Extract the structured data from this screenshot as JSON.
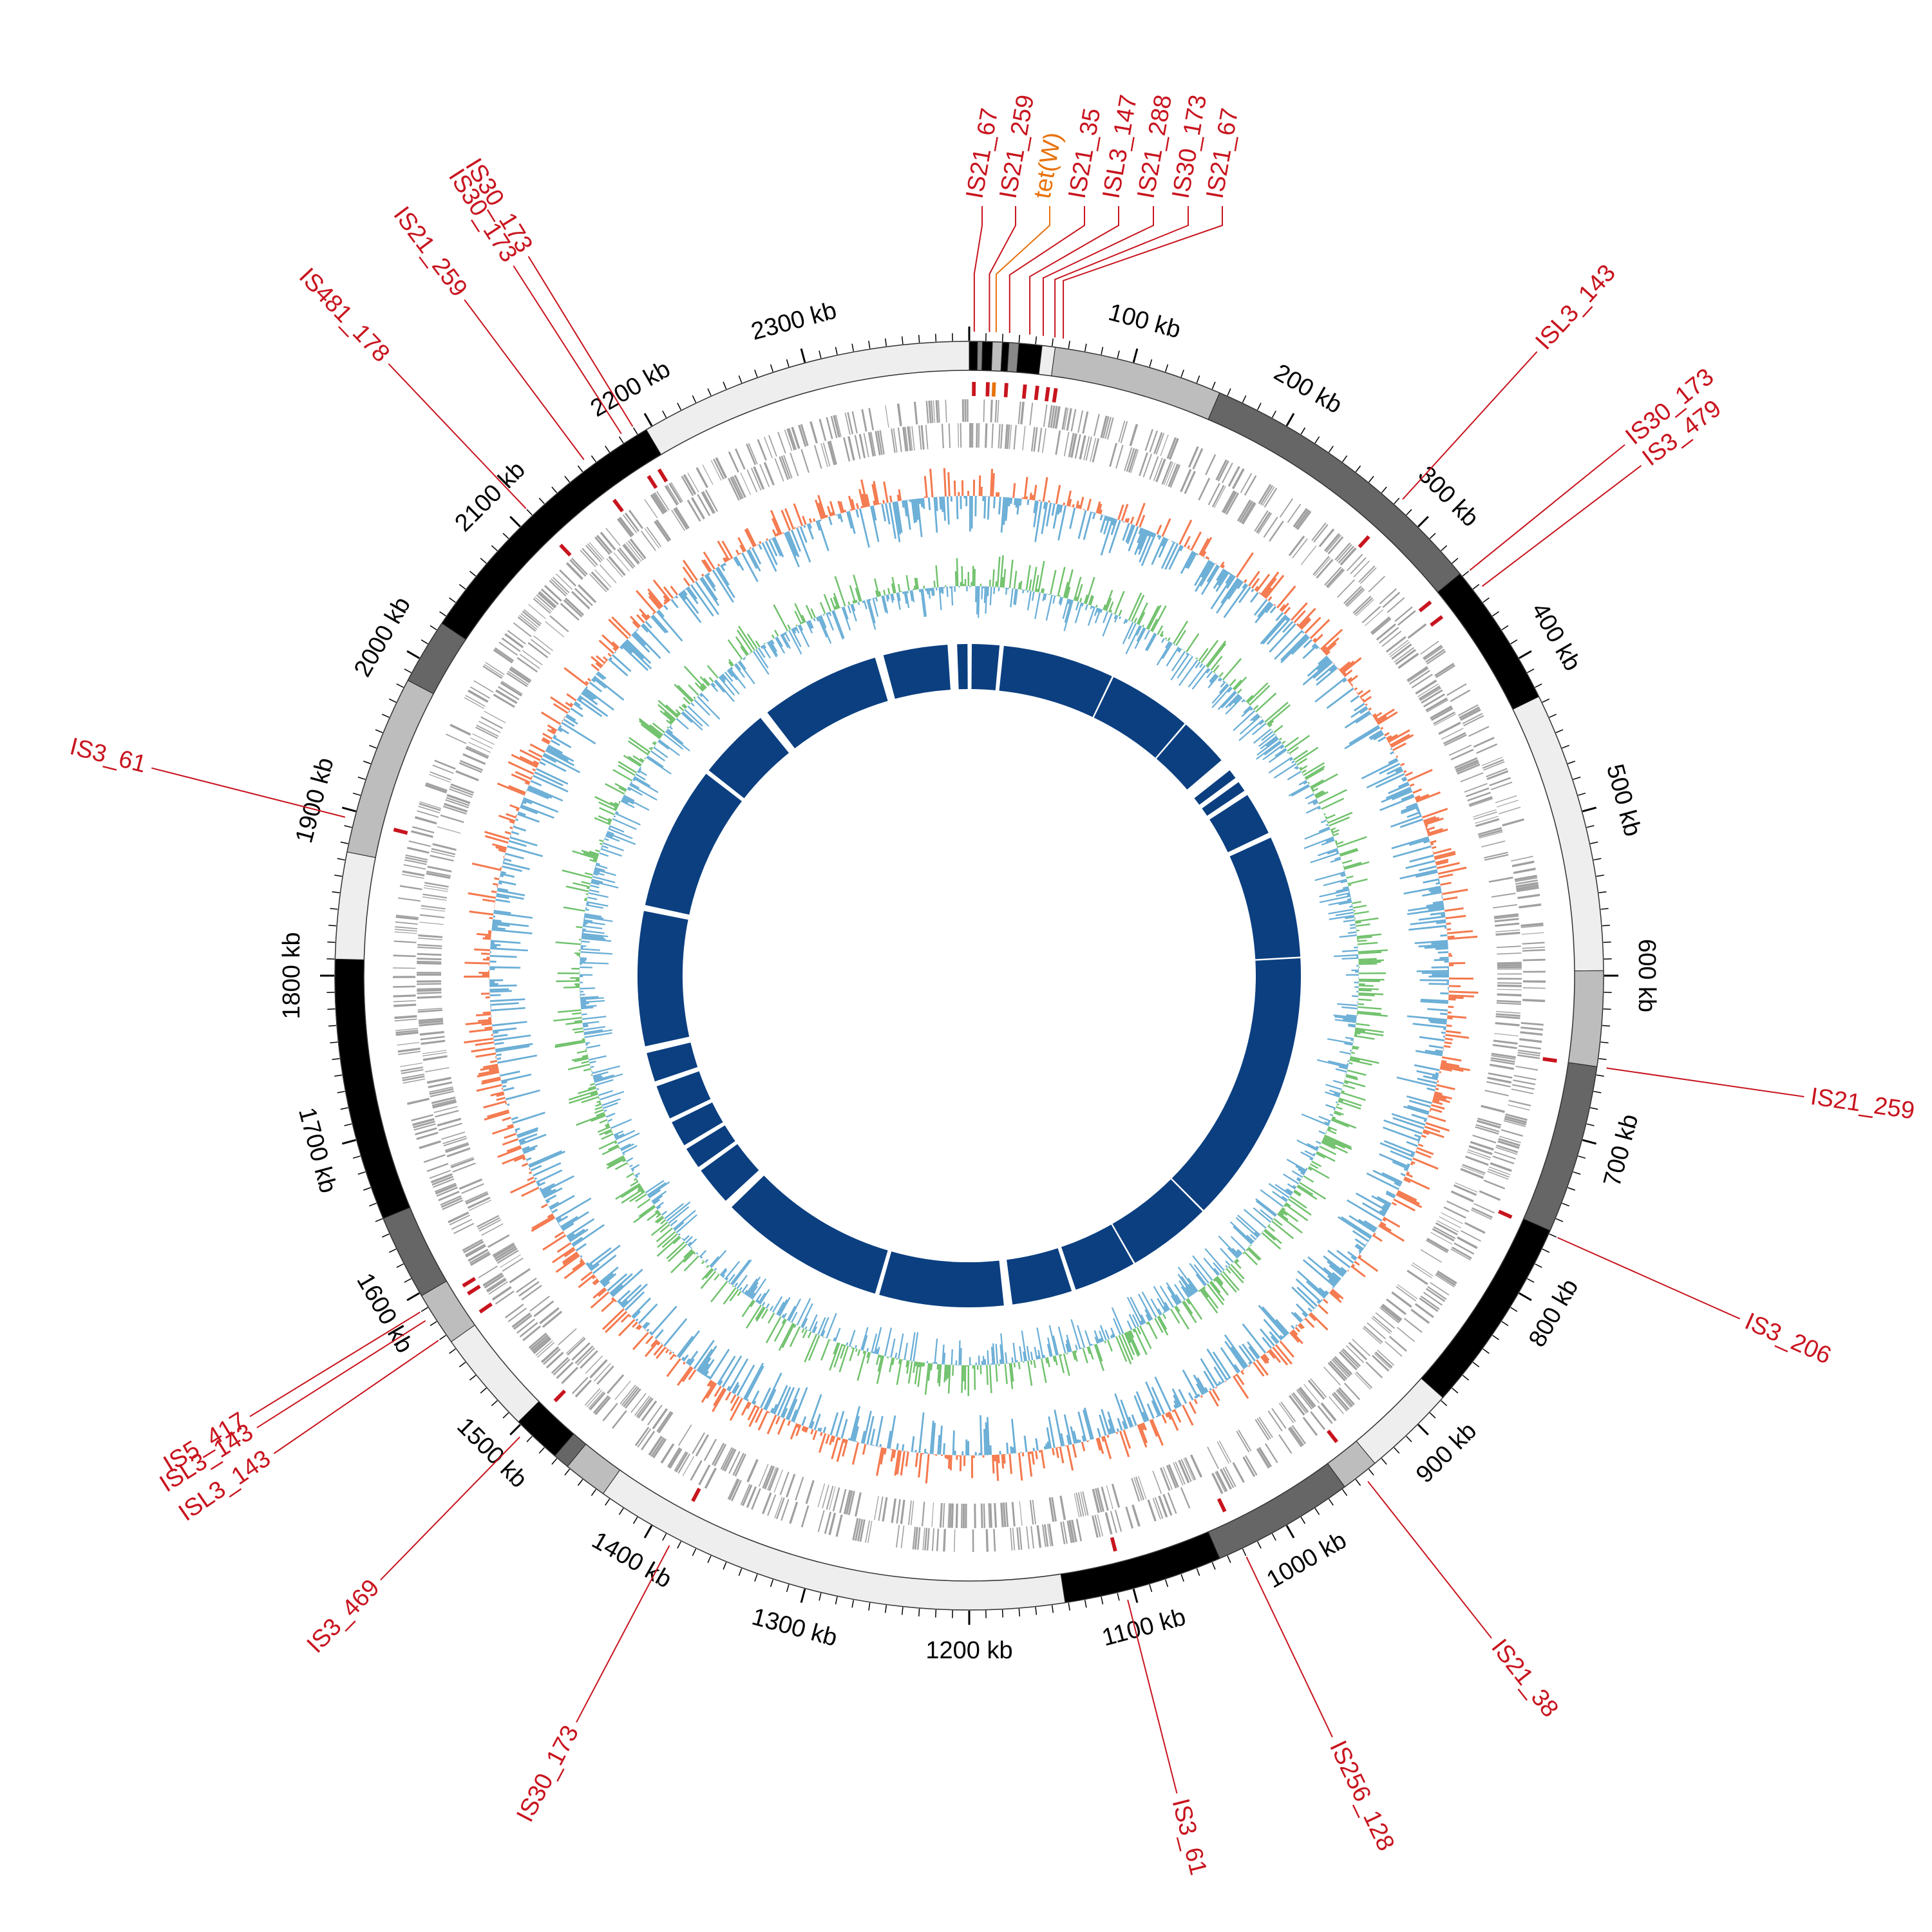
{
  "genome": {
    "length_kb": 2400,
    "tick_unit": "kb",
    "tick_labels": [
      "100 kb",
      "200 kb",
      "300 kb",
      "400 kb",
      "500 kb",
      "600 kb",
      "700 kb",
      "800 kb",
      "900 kb",
      "1000 kb",
      "1100 kb",
      "1200 kb",
      "1300 kb",
      "1400 kb",
      "1500 kb",
      "1600 kb",
      "1700 kb",
      "1800 kb",
      "1900 kb",
      "2000 kb",
      "2100 kb",
      "2200 kb",
      "2300 kb"
    ]
  },
  "colors": {
    "label_is": "#c8141e",
    "label_resistance": "#e8720c",
    "gc_content_pos": "#f4794e",
    "gc_content_neg": "#6aaed6",
    "gc_skew_pos": "#70c16c",
    "gc_skew_neg": "#6aaed6",
    "inner_blocks": "#0b3f80",
    "cds": "#a0a0a0"
  },
  "contigs": [
    {
      "start": 0,
      "end": 5,
      "shade": "#000000"
    },
    {
      "start": 5,
      "end": 8,
      "shade": "#888888"
    },
    {
      "start": 8,
      "end": 14,
      "shade": "#000000"
    },
    {
      "start": 14,
      "end": 20,
      "shade": "#bdbdbd"
    },
    {
      "start": 20,
      "end": 24,
      "shade": "#000000"
    },
    {
      "start": 24,
      "end": 30,
      "shade": "#888888"
    },
    {
      "start": 30,
      "end": 44,
      "shade": "#000000"
    },
    {
      "start": 44,
      "end": 52,
      "shade": "#eeeeee"
    },
    {
      "start": 52,
      "end": 155,
      "shade": "#bdbdbd"
    },
    {
      "start": 155,
      "end": 338,
      "shade": "#666666"
    },
    {
      "start": 338,
      "end": 426,
      "shade": "#000000"
    },
    {
      "start": 426,
      "end": 597,
      "shade": "#eeeeee"
    },
    {
      "start": 597,
      "end": 655,
      "shade": "#bdbdbd"
    },
    {
      "start": 655,
      "end": 758,
      "shade": "#666666"
    },
    {
      "start": 758,
      "end": 878,
      "shade": "#000000"
    },
    {
      "start": 878,
      "end": 935,
      "shade": "#eeeeee"
    },
    {
      "start": 935,
      "end": 958,
      "shade": "#bdbdbd"
    },
    {
      "start": 958,
      "end": 1045,
      "shade": "#666666"
    },
    {
      "start": 1045,
      "end": 1142,
      "shade": "#000000"
    },
    {
      "start": 1142,
      "end": 1435,
      "shade": "#eeeeee"
    },
    {
      "start": 1435,
      "end": 1462,
      "shade": "#bdbdbd"
    },
    {
      "start": 1462,
      "end": 1472,
      "shade": "#666666"
    },
    {
      "start": 1472,
      "end": 1502,
      "shade": "#000000"
    },
    {
      "start": 1502,
      "end": 1565,
      "shade": "#eeeeee"
    },
    {
      "start": 1565,
      "end": 1598,
      "shade": "#bdbdbd"
    },
    {
      "start": 1598,
      "end": 1650,
      "shade": "#666666"
    },
    {
      "start": 1650,
      "end": 1810,
      "shade": "#000000"
    },
    {
      "start": 1810,
      "end": 1875,
      "shade": "#eeeeee"
    },
    {
      "start": 1875,
      "end": 1985,
      "shade": "#bdbdbd"
    },
    {
      "start": 1985,
      "end": 2025,
      "shade": "#666666"
    },
    {
      "start": 2025,
      "end": 2196,
      "shade": "#000000"
    },
    {
      "start": 2196,
      "end": 2400,
      "shade": "#eeeeee"
    }
  ],
  "labels": [
    {
      "text": "IS21_67",
      "pos": 3,
      "side": "top",
      "kind": "is"
    },
    {
      "text": "IS21_259",
      "pos": 12,
      "side": "top",
      "kind": "is"
    },
    {
      "text": "tet(W)",
      "pos": 16,
      "side": "top",
      "kind": "resistance"
    },
    {
      "text": "IS21_35",
      "pos": 24,
      "side": "top",
      "kind": "is"
    },
    {
      "text": "ISL3_147",
      "pos": 36,
      "side": "top",
      "kind": "is"
    },
    {
      "text": "IS21_288",
      "pos": 44,
      "side": "top",
      "kind": "is"
    },
    {
      "text": "IS30_173",
      "pos": 51,
      "side": "top",
      "kind": "is"
    },
    {
      "text": "IS21_67",
      "pos": 56,
      "side": "top",
      "kind": "is"
    },
    {
      "text": "ISL3_143",
      "pos": 282,
      "side": "right",
      "kind": "is"
    },
    {
      "text": "IS30_173",
      "pos": 340,
      "side": "right",
      "kind": "is"
    },
    {
      "text": "IS3_479",
      "pos": 352,
      "side": "right",
      "kind": "is"
    },
    {
      "text": "IS21_259",
      "pos": 655,
      "side": "right",
      "kind": "is"
    },
    {
      "text": "IS3_206",
      "pos": 760,
      "side": "right",
      "kind": "is"
    },
    {
      "text": "IS21_38",
      "pos": 945,
      "side": "right",
      "kind": "is"
    },
    {
      "text": "IS256_128",
      "pos": 1030,
      "side": "right",
      "kind": "is"
    },
    {
      "text": "IS3_61",
      "pos": 1105,
      "side": "bottom",
      "kind": "is"
    },
    {
      "text": "IS30_173",
      "pos": 1385,
      "side": "bottom",
      "kind": "is"
    },
    {
      "text": "IS3_469",
      "pos": 1495,
      "side": "left",
      "kind": "is"
    },
    {
      "text": "ISL3_143",
      "pos": 1570,
      "side": "left",
      "kind": "is"
    },
    {
      "text": "ISL3_143",
      "pos": 1584,
      "side": "left",
      "kind": "is"
    },
    {
      "text": "IS5_417",
      "pos": 1590,
      "side": "left",
      "kind": "is"
    },
    {
      "text": "IS3_61",
      "pos": 1895,
      "side": "left",
      "kind": "is"
    },
    {
      "text": "IS481_178",
      "pos": 2110,
      "side": "left",
      "kind": "is"
    },
    {
      "text": "IS21_259",
      "pos": 2155,
      "side": "left",
      "kind": "is"
    },
    {
      "text": "IS30_173",
      "pos": 2182,
      "side": "left",
      "kind": "is"
    },
    {
      "text": "IS30_173",
      "pos": 2190,
      "side": "left",
      "kind": "is"
    }
  ],
  "inner_blocks": [
    {
      "start": 3,
      "end": 35
    },
    {
      "start": 40,
      "end": 170
    },
    {
      "start": 172,
      "end": 270
    },
    {
      "start": 272,
      "end": 330
    },
    {
      "start": 345,
      "end": 356
    },
    {
      "start": 362,
      "end": 374
    },
    {
      "start": 380,
      "end": 430
    },
    {
      "start": 436,
      "end": 578
    },
    {
      "start": 580,
      "end": 900
    },
    {
      "start": 902,
      "end": 1000
    },
    {
      "start": 1002,
      "end": 1075
    },
    {
      "start": 1080,
      "end": 1150
    },
    {
      "start": 1160,
      "end": 1305
    },
    {
      "start": 1310,
      "end": 1505
    },
    {
      "start": 1515,
      "end": 1560
    },
    {
      "start": 1565,
      "end": 1590
    },
    {
      "start": 1595,
      "end": 1625
    },
    {
      "start": 1630,
      "end": 1670
    },
    {
      "start": 1676,
      "end": 1710
    },
    {
      "start": 1718,
      "end": 1875
    },
    {
      "start": 1882,
      "end": 2050
    },
    {
      "start": 2055,
      "end": 2140
    },
    {
      "start": 2150,
      "end": 2290
    },
    {
      "start": 2300,
      "end": 2375
    },
    {
      "start": 2386,
      "end": 2398
    }
  ]
}
